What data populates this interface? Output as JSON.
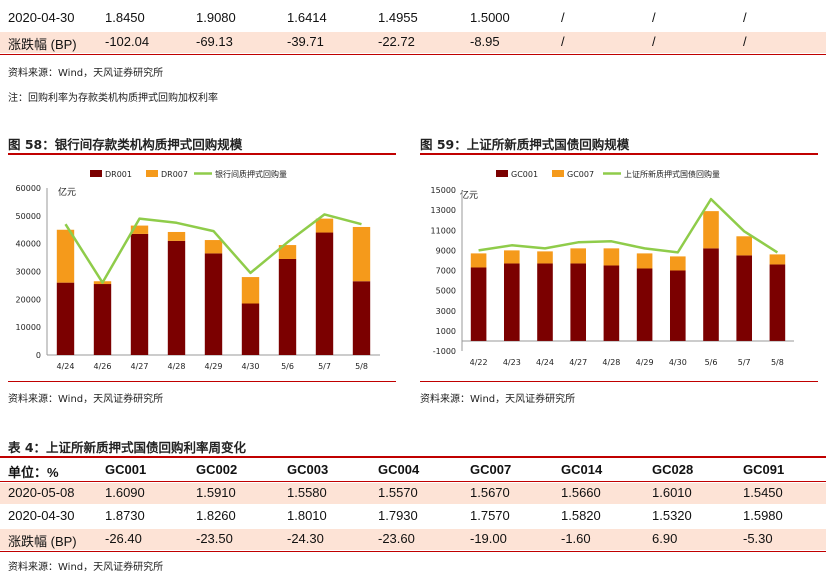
{
  "top_table": {
    "rows": [
      {
        "label": "2020-04-30",
        "values": [
          "1.8450",
          "1.9080",
          "1.6414",
          "1.4955",
          "1.5000",
          "/",
          "/",
          "/"
        ],
        "highlight": false
      },
      {
        "label": "涨跌幅 (BP)",
        "values": [
          "-102.04",
          "-69.13",
          "-39.71",
          "-22.72",
          "-8.95",
          "/",
          "/",
          "/"
        ],
        "highlight": true
      }
    ]
  },
  "notes": {
    "source1": "资料来源：Wind，天风证券研究所",
    "note1": "注：回购利率为存款类机构质押式回购加权利率",
    "source2": "资料来源：Wind，天风证券研究所",
    "source3": "资料来源：Wind，天风证券研究所",
    "source4": "资料来源：Wind，天风证券研究所"
  },
  "figures": {
    "fig58_title": "图 58：银行间存款类机构质押式回购规模",
    "fig59_title": "图 59：上证所新质押式国债回购规模"
  },
  "chart_data": [
    {
      "type": "bar",
      "stacked": true,
      "title": "银行间存款类机构质押式回购规模",
      "unit": "亿元",
      "categories": [
        "4/24",
        "4/26",
        "4/27",
        "4/28",
        "4/29",
        "4/30",
        "5/6",
        "5/7",
        "5/8"
      ],
      "series": [
        {
          "name": "DR001",
          "kind": "bar",
          "color": "#7b0000",
          "values": [
            26000,
            25500,
            43500,
            41000,
            36500,
            18500,
            34500,
            44000,
            26500
          ]
        },
        {
          "name": "DR007",
          "kind": "bar",
          "color": "#f59a1b",
          "values": [
            19000,
            1000,
            3000,
            3200,
            4800,
            9500,
            5000,
            5000,
            19500
          ]
        },
        {
          "name": "银行间质押式回购量",
          "kind": "line",
          "color": "#8fcc4a",
          "values": [
            47000,
            26000,
            49000,
            47500,
            44500,
            29500,
            40500,
            50500,
            47000
          ]
        }
      ],
      "ylim": [
        0,
        60000
      ],
      "yticks": [
        0,
        10000,
        20000,
        30000,
        40000,
        50000,
        60000
      ],
      "legend": "top"
    },
    {
      "type": "bar",
      "stacked": true,
      "title": "上证所新质押式国债回购规模",
      "unit": "亿元",
      "categories": [
        "4/22",
        "4/23",
        "4/24",
        "4/27",
        "4/28",
        "4/29",
        "4/30",
        "5/6",
        "5/7",
        "5/8"
      ],
      "series": [
        {
          "name": "GC001",
          "kind": "bar",
          "color": "#7b0000",
          "values": [
            7300,
            7700,
            7700,
            7700,
            7500,
            7200,
            7000,
            9200,
            8500,
            7600
          ]
        },
        {
          "name": "GC007",
          "kind": "bar",
          "color": "#f59a1b",
          "values": [
            1400,
            1300,
            1200,
            1500,
            1700,
            1500,
            1400,
            3700,
            1900,
            1000
          ]
        },
        {
          "name": "上证所新质押式国债回购量",
          "kind": "line",
          "color": "#8fcc4a",
          "values": [
            9000,
            9500,
            9200,
            9800,
            9900,
            9200,
            8800,
            14100,
            10900,
            8800
          ]
        }
      ],
      "ylim": [
        -1000,
        15000
      ],
      "yticks": [
        -1000,
        1000,
        3000,
        5000,
        7000,
        9000,
        11000,
        13000,
        15000
      ],
      "legend": "top"
    }
  ],
  "table4": {
    "title": "表 4：上证所新质押式国债回购利率周变化",
    "header": {
      "label": "单位：%",
      "cols": [
        "GC001",
        "GC002",
        "GC003",
        "GC004",
        "GC007",
        "GC014",
        "GC028",
        "GC091"
      ]
    },
    "rows": [
      {
        "label": "2020-05-08",
        "values": [
          "1.6090",
          "1.5910",
          "1.5580",
          "1.5570",
          "1.5670",
          "1.5660",
          "1.6010",
          "1.5450"
        ],
        "highlight": true
      },
      {
        "label": "2020-04-30",
        "values": [
          "1.8730",
          "1.8260",
          "1.8010",
          "1.7930",
          "1.7570",
          "1.5820",
          "1.5320",
          "1.5980"
        ],
        "highlight": false
      },
      {
        "label": "涨跌幅 (BP)",
        "values": [
          "-26.40",
          "-23.50",
          "-24.30",
          "-23.60",
          "-19.00",
          "-1.60",
          "6.90",
          "-5.30"
        ],
        "highlight": true
      }
    ]
  }
}
